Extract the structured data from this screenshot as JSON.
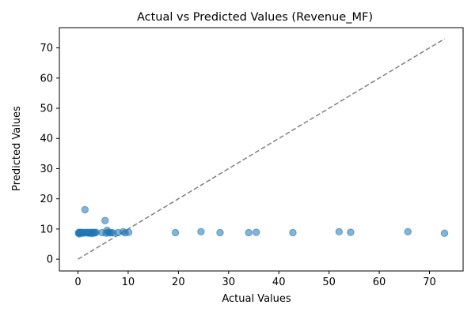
{
  "chart_data": {
    "type": "scatter",
    "title": "Actual vs Predicted Values (Revenue_MF)",
    "xlabel": "Actual Values",
    "ylabel": "Predicted Values",
    "xlim": [
      -3.7,
      76.7
    ],
    "ylim": [
      -3.9,
      76.7
    ],
    "xticks": [
      0,
      10,
      20,
      30,
      40,
      50,
      60,
      70
    ],
    "yticks": [
      0,
      10,
      20,
      30,
      40,
      50,
      60,
      70
    ],
    "grid": false,
    "legend": "none",
    "colors": {
      "points": "#1f77b4",
      "reference_line": "#808080"
    },
    "series": [
      {
        "points": [
          {
            "x": 0.1,
            "y": 8.6
          },
          {
            "x": 0.2,
            "y": 8.9
          },
          {
            "x": 0.3,
            "y": 8.4
          },
          {
            "x": 0.4,
            "y": 8.8
          },
          {
            "x": 0.5,
            "y": 8.7
          },
          {
            "x": 0.7,
            "y": 8.9
          },
          {
            "x": 0.9,
            "y": 8.6
          },
          {
            "x": 1.1,
            "y": 8.8
          },
          {
            "x": 1.3,
            "y": 8.7
          },
          {
            "x": 1.4,
            "y": 16.4
          },
          {
            "x": 1.6,
            "y": 8.9
          },
          {
            "x": 1.8,
            "y": 8.7
          },
          {
            "x": 2.0,
            "y": 8.8
          },
          {
            "x": 2.2,
            "y": 8.6
          },
          {
            "x": 2.4,
            "y": 8.9
          },
          {
            "x": 2.6,
            "y": 8.7
          },
          {
            "x": 2.8,
            "y": 8.5
          },
          {
            "x": 3.0,
            "y": 8.9
          },
          {
            "x": 3.2,
            "y": 8.8
          },
          {
            "x": 3.4,
            "y": 8.7
          },
          {
            "x": 3.6,
            "y": 8.9
          },
          {
            "x": 4.8,
            "y": 8.8
          },
          {
            "x": 5.4,
            "y": 12.8
          },
          {
            "x": 5.6,
            "y": 8.6
          },
          {
            "x": 5.8,
            "y": 9.6
          },
          {
            "x": 6.0,
            "y": 8.9
          },
          {
            "x": 6.3,
            "y": 8.7
          },
          {
            "x": 6.6,
            "y": 8.8
          },
          {
            "x": 7.0,
            "y": 8.7
          },
          {
            "x": 8.0,
            "y": 8.8
          },
          {
            "x": 9.0,
            "y": 9.1
          },
          {
            "x": 9.4,
            "y": 8.7
          },
          {
            "x": 10.1,
            "y": 8.9
          },
          {
            "x": 19.4,
            "y": 8.8
          },
          {
            "x": 24.5,
            "y": 9.1
          },
          {
            "x": 28.3,
            "y": 8.8
          },
          {
            "x": 34.0,
            "y": 8.8
          },
          {
            "x": 35.5,
            "y": 8.9
          },
          {
            "x": 42.8,
            "y": 8.8
          },
          {
            "x": 52.0,
            "y": 9.1
          },
          {
            "x": 54.3,
            "y": 8.9
          },
          {
            "x": 65.7,
            "y": 9.1
          },
          {
            "x": 73.0,
            "y": 8.6
          }
        ]
      }
    ],
    "reference_line": {
      "from": [
        0,
        0
      ],
      "to": [
        73,
        73
      ],
      "style": "dashed"
    }
  }
}
